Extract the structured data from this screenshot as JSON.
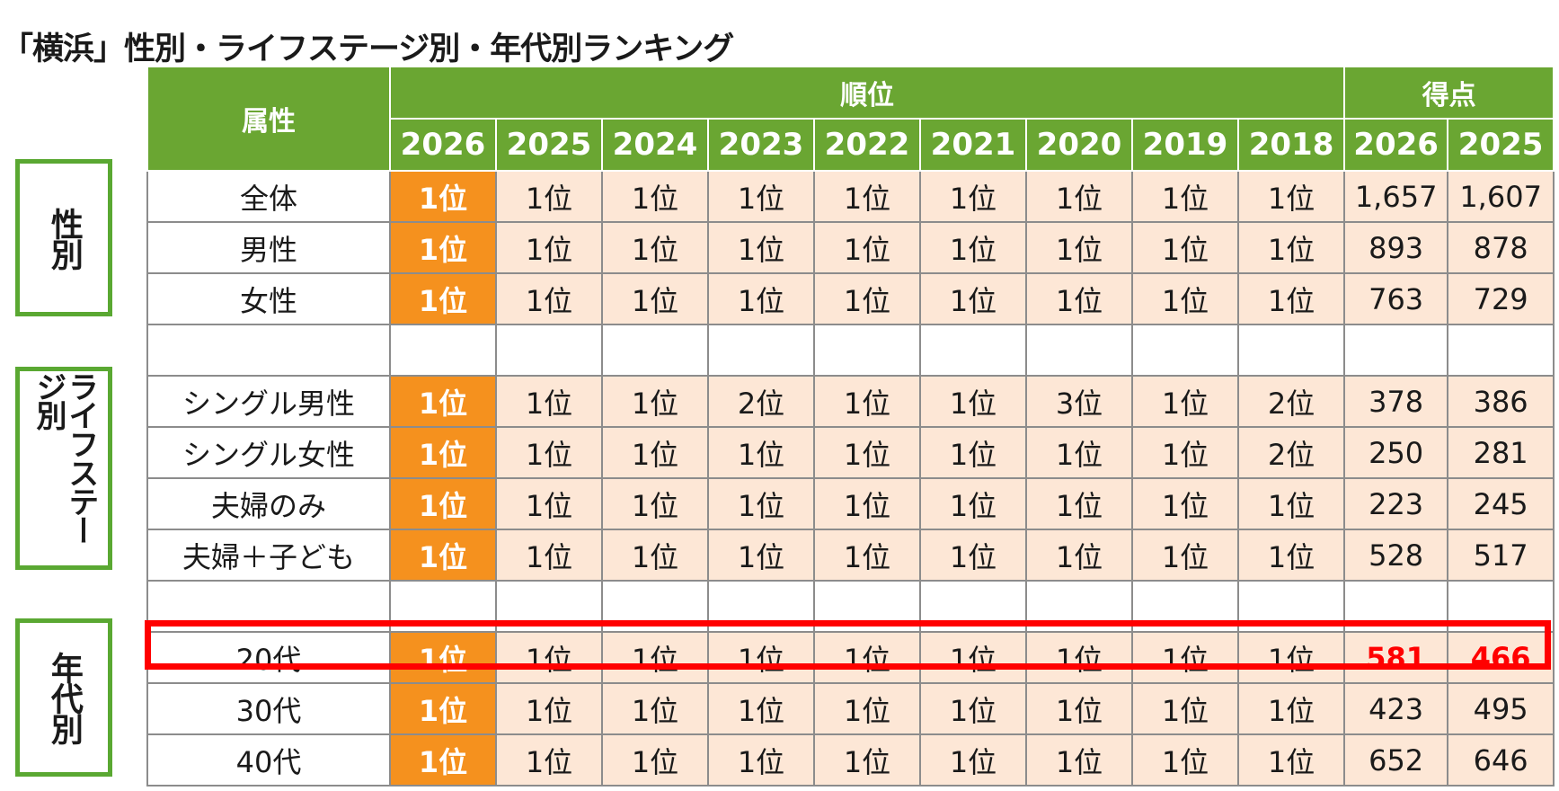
{
  "title": "「横浜」性別・ライフステージ別・年代別ランキング",
  "header": {
    "attribute_label": "属性",
    "rank_label": "順位",
    "score_label": "得点",
    "rank_years": [
      "2026",
      "2025",
      "2024",
      "2023",
      "2022",
      "2021",
      "2020",
      "2019",
      "2018"
    ],
    "score_years": [
      "2026",
      "2025"
    ]
  },
  "groups": {
    "gender": "性別",
    "lifestage": "ライフステージ別",
    "age": "年代別"
  },
  "rows": [
    {
      "attr": "全体",
      "ranks": [
        "1位",
        "1位",
        "1位",
        "1位",
        "1位",
        "1位",
        "1位",
        "1位",
        "1位"
      ],
      "scores": [
        "1,657",
        "1,607"
      ]
    },
    {
      "attr": "男性",
      "ranks": [
        "1位",
        "1位",
        "1位",
        "1位",
        "1位",
        "1位",
        "1位",
        "1位",
        "1位"
      ],
      "scores": [
        "893",
        "878"
      ]
    },
    {
      "attr": "女性",
      "ranks": [
        "1位",
        "1位",
        "1位",
        "1位",
        "1位",
        "1位",
        "1位",
        "1位",
        "1位"
      ],
      "scores": [
        "763",
        "729"
      ]
    },
    {
      "attr": "シングル男性",
      "ranks": [
        "1位",
        "1位",
        "1位",
        "2位",
        "1位",
        "1位",
        "3位",
        "1位",
        "2位"
      ],
      "scores": [
        "378",
        "386"
      ]
    },
    {
      "attr": "シングル女性",
      "ranks": [
        "1位",
        "1位",
        "1位",
        "1位",
        "1位",
        "1位",
        "1位",
        "1位",
        "2位"
      ],
      "scores": [
        "250",
        "281"
      ]
    },
    {
      "attr": "夫婦のみ",
      "ranks": [
        "1位",
        "1位",
        "1位",
        "1位",
        "1位",
        "1位",
        "1位",
        "1位",
        "1位"
      ],
      "scores": [
        "223",
        "245"
      ]
    },
    {
      "attr": "夫婦＋子ども",
      "ranks": [
        "1位",
        "1位",
        "1位",
        "1位",
        "1位",
        "1位",
        "1位",
        "1位",
        "1位"
      ],
      "scores": [
        "528",
        "517"
      ]
    },
    {
      "attr": "20代",
      "ranks": [
        "1位",
        "1位",
        "1位",
        "1位",
        "1位",
        "1位",
        "1位",
        "1位",
        "1位"
      ],
      "scores": [
        "581",
        "466"
      ]
    },
    {
      "attr": "30代",
      "ranks": [
        "1位",
        "1位",
        "1位",
        "1位",
        "1位",
        "1位",
        "1位",
        "1位",
        "1位"
      ],
      "scores": [
        "423",
        "495"
      ]
    },
    {
      "attr": "40代",
      "ranks": [
        "1位",
        "1位",
        "1位",
        "1位",
        "1位",
        "1位",
        "1位",
        "1位",
        "1位"
      ],
      "scores": [
        "652",
        "646"
      ]
    }
  ],
  "colors": {
    "header_green": "#6aa632",
    "current_year_orange": "#f5911e",
    "past_peach": "#fde7d6",
    "highlight_red": "#ff0000",
    "group_border_green": "#5aa832"
  }
}
